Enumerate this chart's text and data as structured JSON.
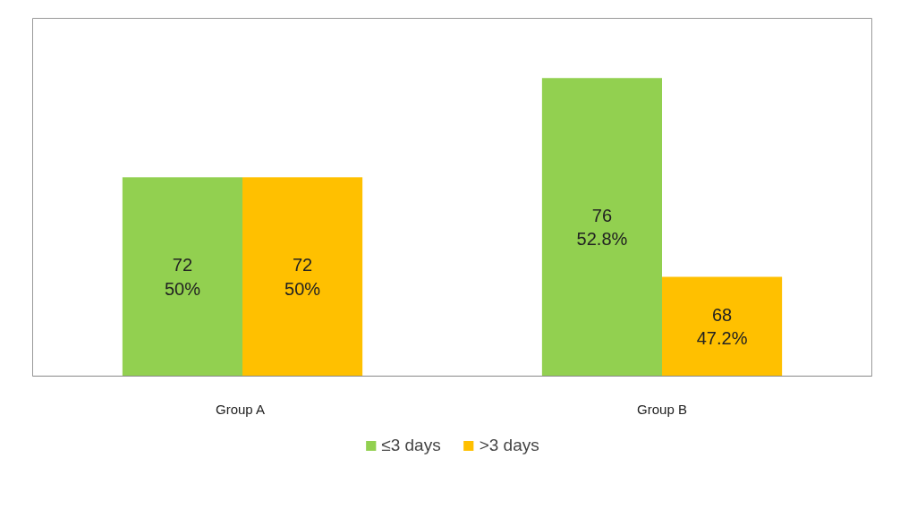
{
  "chart_data": {
    "type": "bar",
    "categories": [
      "Group  A",
      "Group B"
    ],
    "series": [
      {
        "name": "≤3 days",
        "color": "#92d050",
        "values": [
          72,
          76
        ],
        "value_labels": [
          "72\n50%",
          "76\n52.8%"
        ]
      },
      {
        "name": ">3 days",
        "color": "#ffc000",
        "values": [
          72,
          68
        ],
        "value_labels": [
          "72\n50%",
          "68\n47.2%"
        ]
      }
    ],
    "ylim": [
      64,
      78.4
    ],
    "tick_labels": "x",
    "grid": false,
    "legend": "bottom"
  }
}
